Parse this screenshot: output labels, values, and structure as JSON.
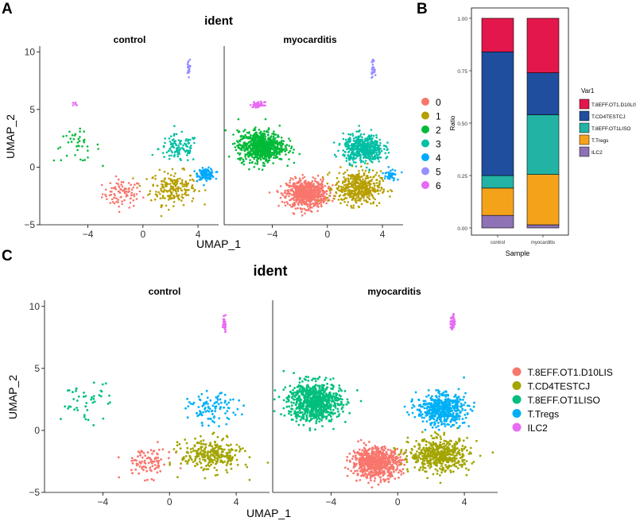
{
  "panel_labels": {
    "a": "A",
    "b": "B",
    "c": "C"
  },
  "chart_data": [
    {
      "id": "A",
      "type": "scatter",
      "title": "ident",
      "facets": [
        "control",
        "myocarditis"
      ],
      "xlabel": "UMAP_1",
      "ylabel": "UMAP_2",
      "xlim": [
        -7.5,
        5.5
      ],
      "ylim": [
        -5,
        10.5
      ],
      "xticks": [
        -4,
        0,
        4
      ],
      "xtick_labels": [
        "−4",
        "0",
        "4"
      ],
      "yticks": [
        -5,
        0,
        5,
        10
      ],
      "ytick_labels": [
        "−5",
        "0",
        "5",
        "10"
      ],
      "legend_title": "",
      "legend": [
        {
          "label": "0",
          "color": "#F8766D"
        },
        {
          "label": "1",
          "color": "#B79F00"
        },
        {
          "label": "2",
          "color": "#00BA38"
        },
        {
          "label": "3",
          "color": "#00BFA4"
        },
        {
          "label": "4",
          "color": "#00A8FF"
        },
        {
          "label": "5",
          "color": "#9590FF"
        },
        {
          "label": "6",
          "color": "#E76BF3"
        }
      ],
      "clusters": [
        {
          "label": "0",
          "cx": -1.5,
          "cy": -2.3,
          "sx": 1.2,
          "sy": 1.0,
          "n_control": 90,
          "n_myocarditis": 700
        },
        {
          "label": "1",
          "cx": 2.2,
          "cy": -1.8,
          "sx": 1.4,
          "sy": 1.2,
          "n_control": 200,
          "n_myocarditis": 450
        },
        {
          "label": "2",
          "cx": -4.8,
          "cy": 1.8,
          "sx": 1.4,
          "sy": 1.1,
          "n_control": 40,
          "n_myocarditis": 750
        },
        {
          "label": "3",
          "cx": 2.6,
          "cy": 1.6,
          "sx": 1.2,
          "sy": 1.0,
          "n_control": 110,
          "n_myocarditis": 500
        },
        {
          "label": "4",
          "cx": 4.6,
          "cy": -0.6,
          "sx": 0.5,
          "sy": 0.4,
          "n_control": 120,
          "n_myocarditis": 40
        },
        {
          "label": "5",
          "cx": 3.3,
          "cy": 8.6,
          "sx": 0.1,
          "sy": 0.6,
          "n_control": 25,
          "n_myocarditis": 30
        },
        {
          "label": "6",
          "cx": -5.0,
          "cy": 5.4,
          "sx": 0.35,
          "sy": 0.2,
          "n_control": 6,
          "n_myocarditis": 50
        }
      ]
    },
    {
      "id": "B",
      "type": "bar",
      "stacked": true,
      "categories": [
        "control",
        "myocarditis"
      ],
      "xlabel": "Sample",
      "ylabel": "Ratio",
      "ylim": [
        0,
        1
      ],
      "yticks": [
        0,
        0.25,
        0.5,
        0.75,
        1
      ],
      "ytick_labels": [
        "0.00",
        "0.25",
        "0.50",
        "0.75",
        "1.00"
      ],
      "legend_title": "Var1",
      "series": [
        {
          "name": "ILC2",
          "color": "#8E72B5",
          "values": [
            0.06,
            0.015
          ]
        },
        {
          "name": "T.Tregs",
          "color": "#F5A21B",
          "values": [
            0.13,
            0.24
          ]
        },
        {
          "name": "T.8EFF.OT1LISO",
          "color": "#23B3A4",
          "values": [
            0.06,
            0.285
          ]
        },
        {
          "name": "T.CD4TESTCJ",
          "color": "#1F4E9E",
          "values": [
            0.59,
            0.2
          ]
        },
        {
          "name": "T.8EFF.OT1.D10LIS",
          "color": "#E3174B",
          "values": [
            0.16,
            0.26
          ]
        }
      ],
      "legend_order": [
        "T.8EFF.OT1.D10LIS",
        "T.CD4TESTCJ",
        "T.8EFF.OT1LISO",
        "T.Tregs",
        "ILC2"
      ]
    },
    {
      "id": "C",
      "type": "scatter",
      "title": "ident",
      "facets": [
        "control",
        "myocarditis"
      ],
      "xlabel": "UMAP_1",
      "ylabel": "UMAP_2",
      "xlim": [
        -7.5,
        6
      ],
      "ylim": [
        -5,
        10.5
      ],
      "xticks": [
        -4,
        0,
        4
      ],
      "xtick_labels": [
        "−4",
        "0",
        "4"
      ],
      "yticks": [
        -5,
        0,
        5,
        10
      ],
      "ytick_labels": [
        "−5",
        "0",
        "5",
        "10"
      ],
      "legend_title": "",
      "legend": [
        {
          "label": "T.8EFF.OT1.D10LIS",
          "color": "#F8766D"
        },
        {
          "label": "T.CD4TESTCJ",
          "color": "#A3A500"
        },
        {
          "label": "T.8EFF.OT1LISO",
          "color": "#00BF7D"
        },
        {
          "label": "T.Tregs",
          "color": "#00B0F6"
        },
        {
          "label": "ILC2",
          "color": "#E76BF3"
        }
      ],
      "clusters": [
        {
          "label": "T.8EFF.OT1.D10LIS",
          "cx": -1.3,
          "cy": -2.6,
          "sx": 1.2,
          "sy": 1.0,
          "n_control": 90,
          "n_myocarditis": 720
        },
        {
          "label": "T.CD4TESTCJ",
          "cx": 2.5,
          "cy": -2.0,
          "sx": 1.5,
          "sy": 1.1,
          "n_control": 280,
          "n_myocarditis": 520
        },
        {
          "label": "T.8EFF.OT1LISO",
          "cx": -5.0,
          "cy": 2.3,
          "sx": 1.3,
          "sy": 1.3,
          "n_control": 45,
          "n_myocarditis": 800
        },
        {
          "label": "T.Tregs",
          "cx": 2.6,
          "cy": 1.7,
          "sx": 1.2,
          "sy": 1.0,
          "n_control": 100,
          "n_myocarditis": 520
        },
        {
          "label": "ILC2",
          "cx": 3.3,
          "cy": 8.7,
          "sx": 0.1,
          "sy": 0.55,
          "n_control": 25,
          "n_myocarditis": 30
        }
      ]
    }
  ]
}
